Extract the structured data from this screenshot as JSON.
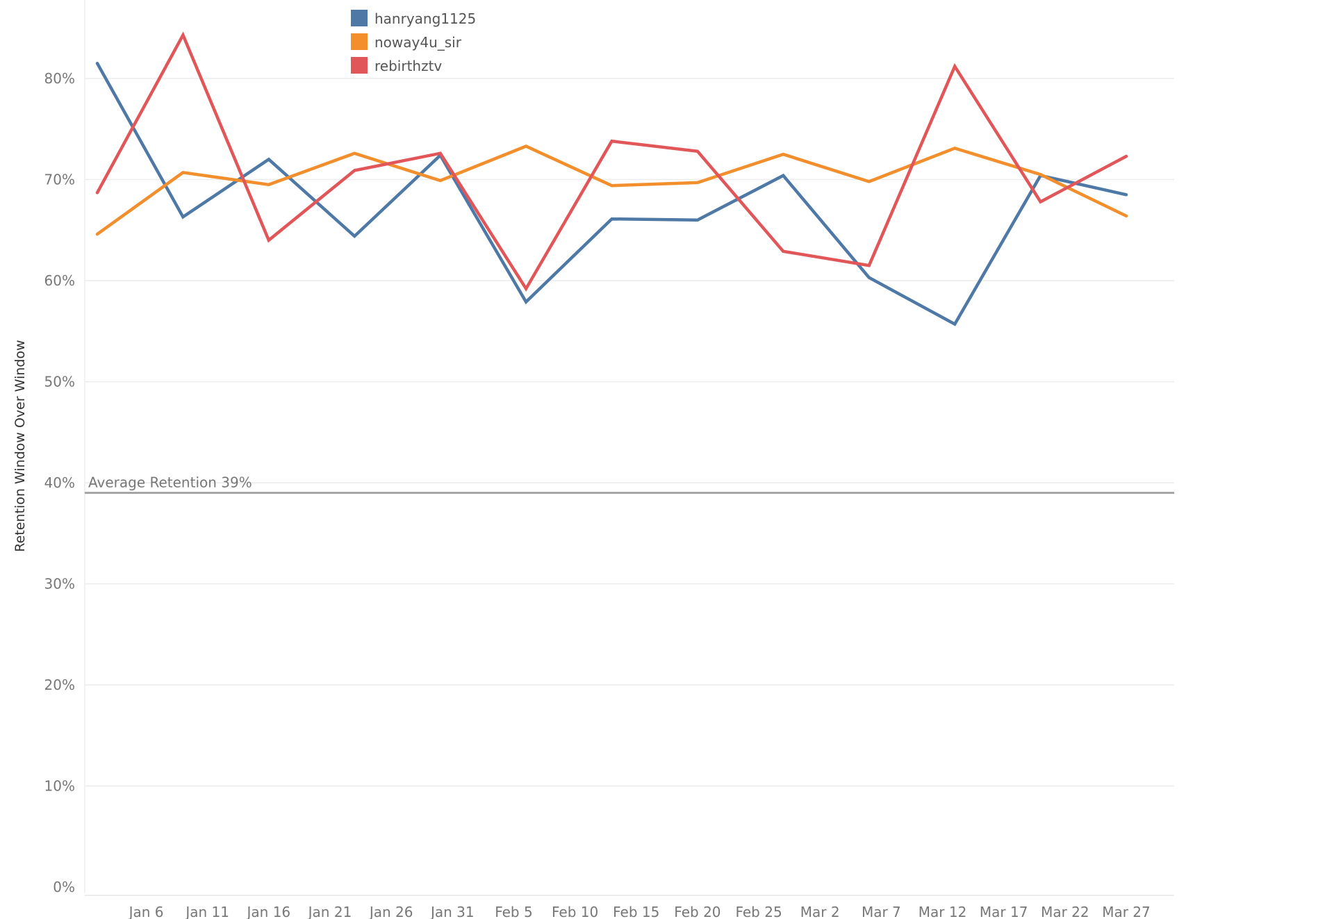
{
  "chart_data": {
    "type": "line",
    "title": "",
    "xlabel": "",
    "ylabel": "Retention Window Over Window",
    "x": [
      "Jan 2",
      "Jan 9",
      "Jan 16",
      "Jan 23",
      "Jan 30",
      "Feb 6",
      "Feb 13",
      "Feb 20",
      "Feb 27",
      "Mar 6",
      "Mar 13",
      "Mar 20",
      "Mar 27"
    ],
    "x_ticks": [
      "Jan 6",
      "Jan 11",
      "Jan 16",
      "Jan 21",
      "Jan 26",
      "Jan 31",
      "Feb 5",
      "Feb 10",
      "Feb 15",
      "Feb 20",
      "Feb 25",
      "Mar 2",
      "Mar 7",
      "Mar 12",
      "Mar 17",
      "Mar 22",
      "Mar 27"
    ],
    "y_ticks": [
      "0%",
      "10%",
      "20%",
      "30%",
      "40%",
      "50%",
      "60%",
      "70%",
      "80%"
    ],
    "ylim": [
      0,
      0.88
    ],
    "grid": true,
    "legend_position": "top",
    "series": [
      {
        "name": "hanryang1125",
        "color": "#4e79a7",
        "values": [
          0.815,
          0.663,
          0.72,
          0.644,
          0.724,
          0.579,
          0.661,
          0.66,
          0.704,
          0.603,
          0.557,
          0.704,
          0.685
        ]
      },
      {
        "name": "noway4u_sir",
        "color": "#f28e2b",
        "values": [
          0.646,
          0.707,
          0.695,
          0.726,
          0.699,
          0.733,
          0.694,
          0.697,
          0.725,
          0.698,
          0.731,
          0.705,
          0.664
        ]
      },
      {
        "name": "rebirthztv",
        "color": "#e15759",
        "values": [
          0.687,
          0.843,
          0.64,
          0.709,
          0.726,
          0.592,
          0.738,
          0.728,
          0.629,
          0.615,
          0.812,
          0.678,
          0.723
        ]
      }
    ],
    "reference_line": {
      "label": "Average Retention 39%",
      "value": 0.39,
      "color": "#a6a6a6"
    }
  }
}
